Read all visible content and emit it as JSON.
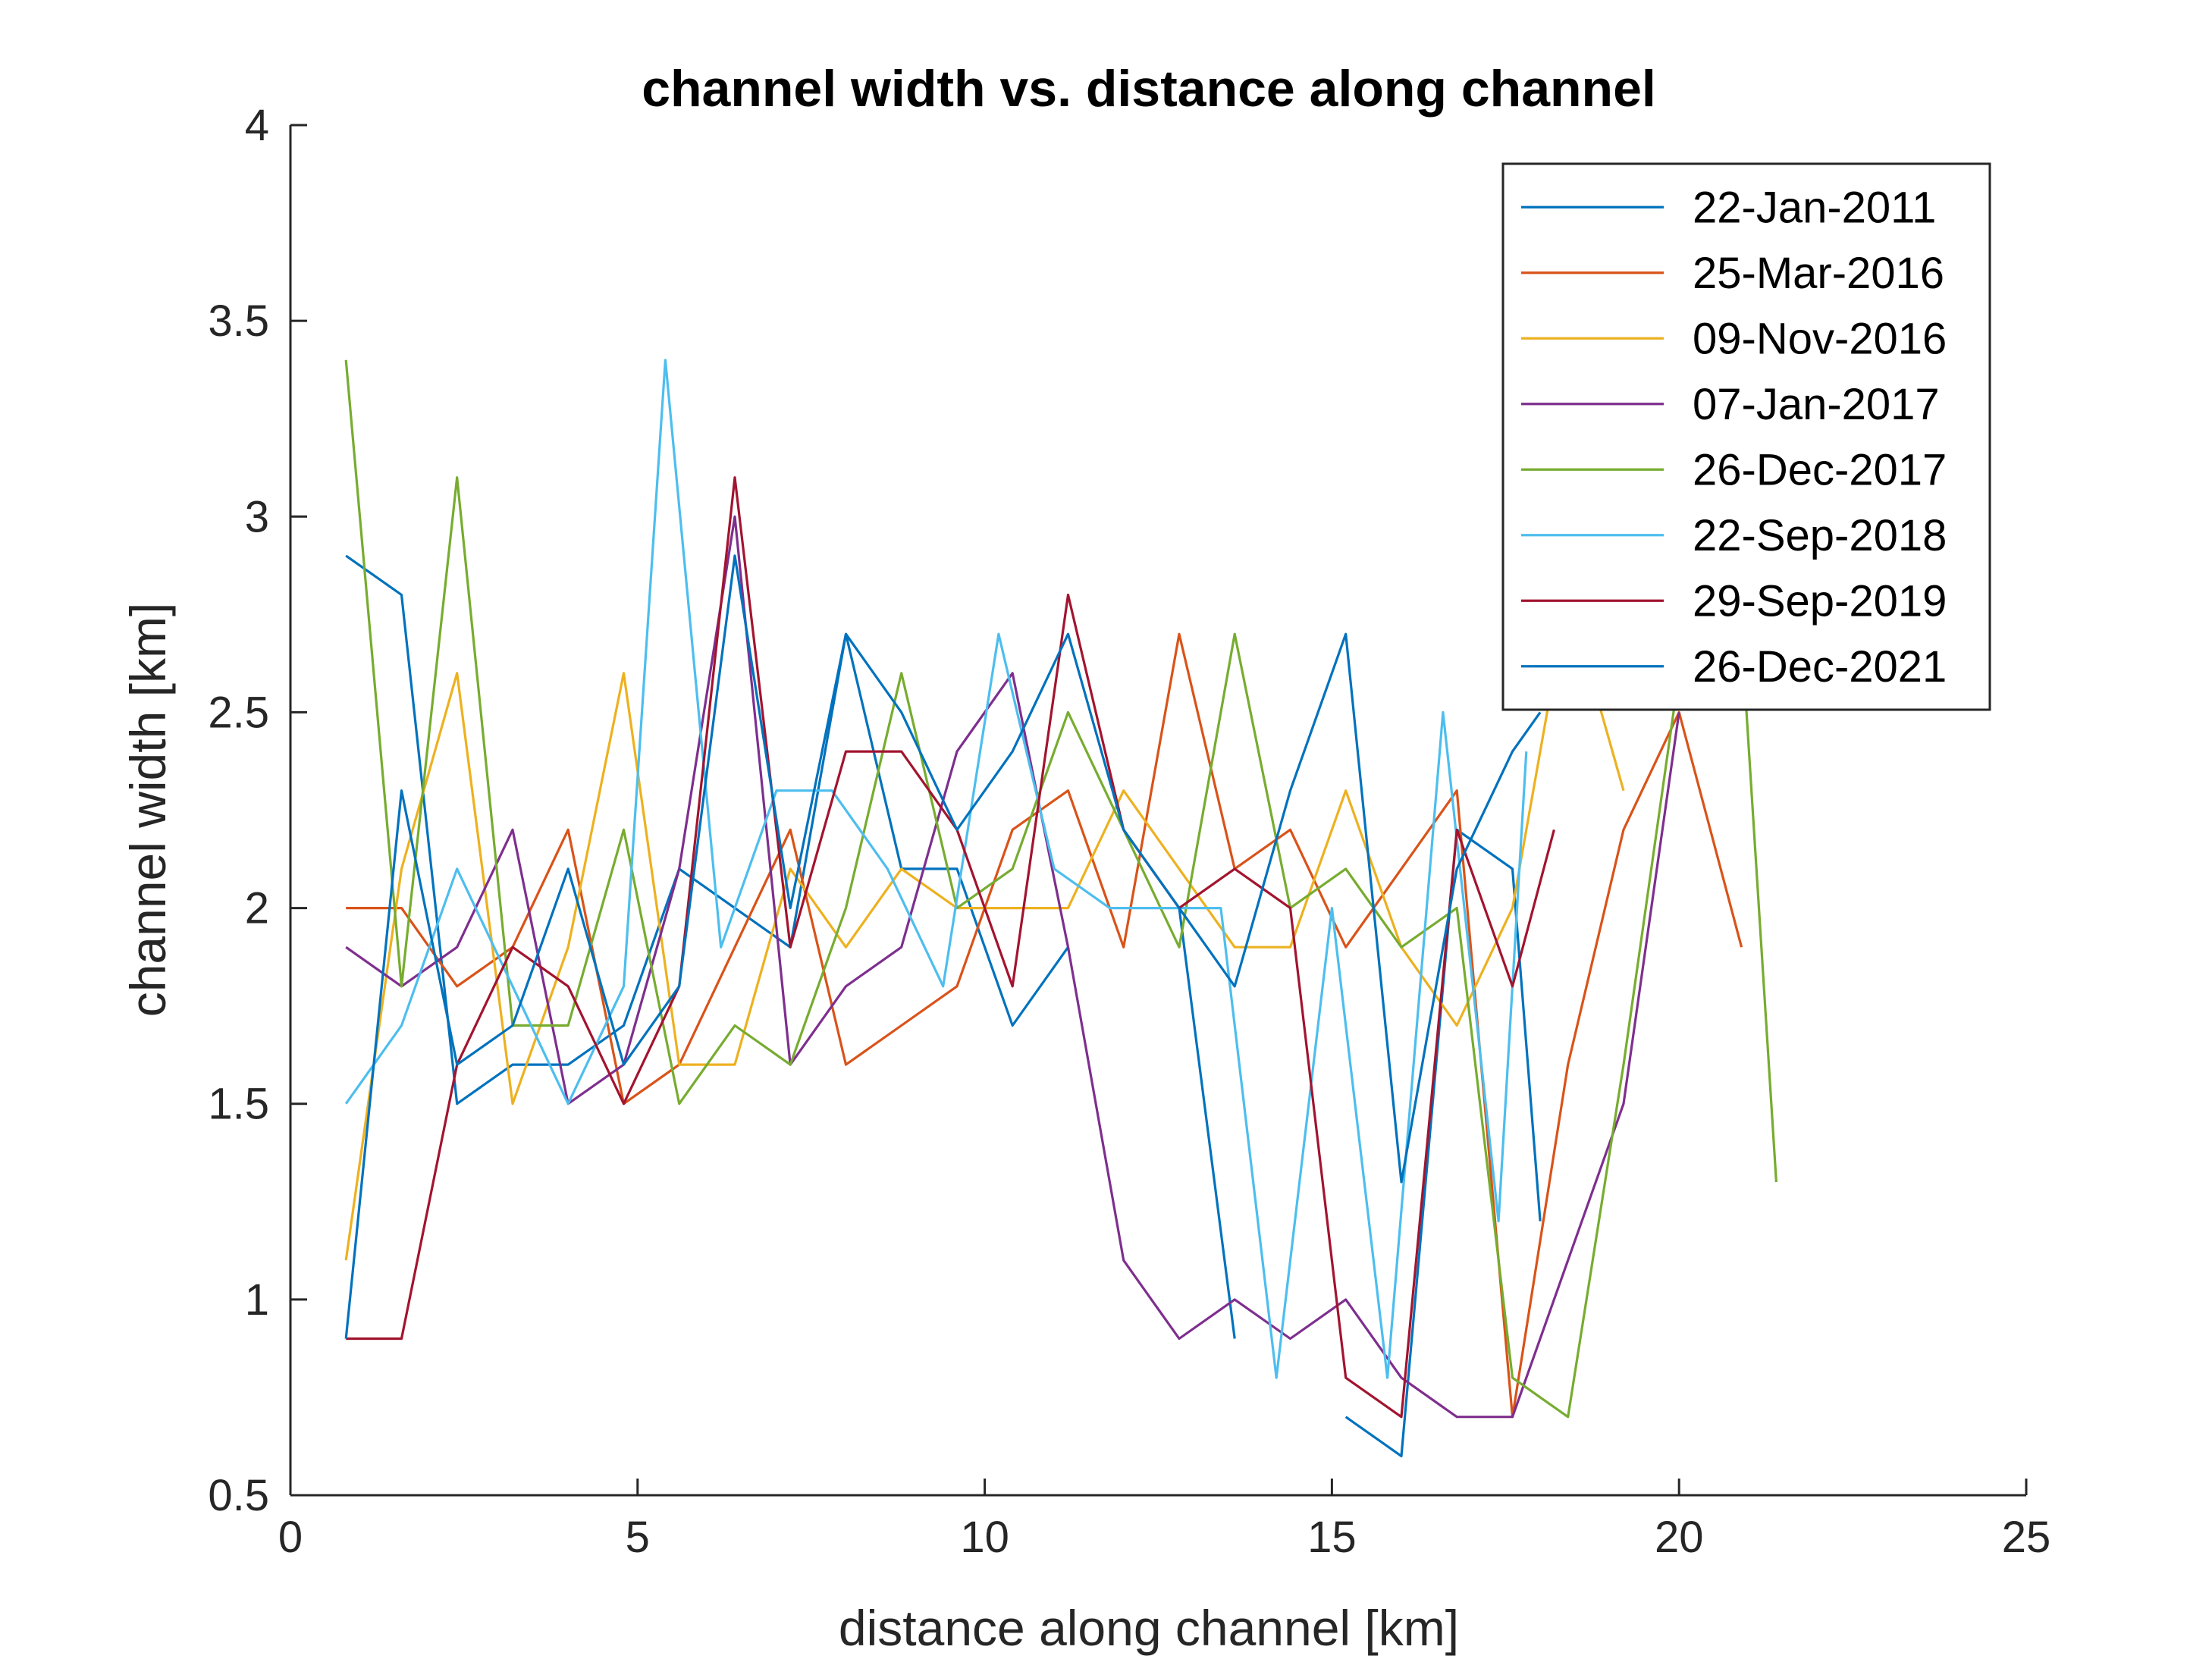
{
  "chart_data": {
    "type": "line",
    "title": "channel width vs. distance along channel",
    "xlabel": "distance along channel [km]",
    "ylabel": "channel width [km]",
    "xlim": [
      0,
      25
    ],
    "ylim": [
      0.5,
      4
    ],
    "xticks": [
      "0",
      "5",
      "10",
      "15",
      "20",
      "25"
    ],
    "yticks": [
      "0.5",
      "1",
      "1.5",
      "2",
      "2.5",
      "3",
      "3.5",
      "4"
    ],
    "grid": false,
    "legend_position": "top-right",
    "series": [
      {
        "name": "22-Jan-2011",
        "color": "#0072BD",
        "x": [
          0.8,
          1.6,
          2.4,
          3.2,
          4.0,
          4.8,
          5.6,
          6.4,
          7.2,
          8.0,
          8.8,
          9.6,
          10.4,
          11.2,
          12.0,
          12.8,
          13.6,
          14.4,
          15.2,
          16.0,
          16.8,
          17.6,
          18.0
        ],
        "y": [
          2.9,
          2.8,
          1.5,
          1.6,
          1.6,
          1.7,
          2.1,
          2.0,
          1.9,
          2.7,
          2.1,
          2.1,
          1.7,
          1.9,
          null,
          2.0,
          0.9,
          null,
          0.7,
          0.6,
          2.2,
          2.1,
          1.2
        ]
      },
      {
        "name": "25-Mar-2016",
        "color": "#D95319",
        "x": [
          0.8,
          1.6,
          2.4,
          3.2,
          4.0,
          4.8,
          5.6,
          6.4,
          7.2,
          8.0,
          8.8,
          9.6,
          10.4,
          11.2,
          12.0,
          12.8,
          13.6,
          14.4,
          15.2,
          16.0,
          16.8,
          17.6,
          18.4,
          19.2,
          20.0,
          20.9
        ],
        "y": [
          2.0,
          2.0,
          1.8,
          1.9,
          2.2,
          1.5,
          1.6,
          1.9,
          2.2,
          1.6,
          1.7,
          1.8,
          2.2,
          2.3,
          1.9,
          2.7,
          2.1,
          2.2,
          1.9,
          2.1,
          2.3,
          0.7,
          1.6,
          2.2,
          2.5,
          1.9
        ]
      },
      {
        "name": "09-Nov-2016",
        "color": "#EDB120",
        "x": [
          0.8,
          1.6,
          2.4,
          3.2,
          4.0,
          4.8,
          5.6,
          6.4,
          7.2,
          8.0,
          8.8,
          9.6,
          10.4,
          11.2,
          12.0,
          12.8,
          13.6,
          14.4,
          15.2,
          16.0,
          16.8,
          17.6,
          18.4,
          19.2
        ],
        "y": [
          1.1,
          2.1,
          2.6,
          1.5,
          1.9,
          2.6,
          1.6,
          1.6,
          2.1,
          1.9,
          2.1,
          2.0,
          2.0,
          2.0,
          2.3,
          2.1,
          1.9,
          1.9,
          2.3,
          1.9,
          1.7,
          2.0,
          2.8,
          2.3
        ]
      },
      {
        "name": "07-Jan-2017",
        "color": "#7E2F8E",
        "x": [
          0.8,
          1.6,
          2.4,
          3.2,
          4.0,
          4.8,
          5.6,
          6.4,
          7.2,
          8.0,
          8.8,
          9.6,
          10.4,
          11.2,
          12.0,
          12.8,
          13.6,
          14.4,
          15.2,
          16.0,
          16.8,
          17.6,
          18.4,
          19.2,
          20.0
        ],
        "y": [
          1.9,
          1.8,
          1.9,
          2.2,
          1.5,
          1.6,
          2.1,
          3.0,
          1.6,
          1.8,
          1.9,
          2.4,
          2.6,
          1.9,
          1.1,
          0.9,
          1.0,
          0.9,
          1.0,
          0.8,
          0.7,
          0.7,
          1.1,
          1.5,
          2.5
        ]
      },
      {
        "name": "26-Dec-2017",
        "color": "#77AC30",
        "x": [
          0.8,
          1.6,
          2.4,
          3.2,
          4.0,
          4.8,
          5.6,
          6.4,
          7.2,
          8.0,
          8.8,
          9.6,
          10.4,
          11.2,
          12.0,
          12.8,
          13.6,
          14.4,
          15.2,
          16.0,
          16.8,
          17.6,
          18.4,
          19.2,
          20.0,
          20.9,
          21.4
        ],
        "y": [
          3.4,
          1.8,
          3.1,
          1.7,
          1.7,
          2.2,
          1.5,
          1.7,
          1.6,
          2.0,
          2.6,
          2.0,
          2.1,
          2.5,
          2.2,
          1.9,
          2.7,
          2.0,
          2.1,
          1.9,
          2.0,
          0.8,
          0.7,
          1.6,
          2.6,
          2.7,
          1.3
        ]
      },
      {
        "name": "22-Sep-2018",
        "color": "#4DBEEE",
        "x": [
          0.8,
          1.6,
          2.4,
          3.2,
          4.0,
          4.8,
          5.4,
          6.2,
          7.0,
          7.8,
          8.6,
          9.4,
          10.2,
          11.0,
          11.8,
          12.6,
          13.4,
          14.2,
          15.0,
          15.8,
          16.6,
          17.4,
          17.8
        ],
        "y": [
          1.5,
          1.7,
          2.1,
          1.8,
          1.5,
          1.8,
          3.4,
          1.9,
          2.3,
          2.3,
          2.1,
          1.8,
          2.7,
          2.1,
          2.0,
          2.0,
          2.0,
          0.8,
          2.0,
          0.8,
          2.5,
          1.2,
          2.4
        ]
      },
      {
        "name": "29-Sep-2019",
        "color": "#A2142F",
        "x": [
          0.8,
          1.6,
          2.4,
          3.2,
          4.0,
          4.8,
          5.6,
          6.4,
          7.2,
          8.0,
          8.8,
          9.6,
          10.4,
          11.2,
          12.0,
          12.8,
          13.6,
          14.4,
          15.2,
          16.0,
          16.8,
          17.6,
          18.2
        ],
        "y": [
          0.9,
          0.9,
          1.6,
          1.9,
          1.8,
          1.5,
          1.8,
          3.1,
          1.9,
          2.4,
          2.4,
          2.2,
          1.8,
          2.8,
          2.2,
          2.0,
          2.1,
          2.0,
          0.8,
          0.7,
          2.2,
          1.8,
          2.2
        ]
      },
      {
        "name": "26-Dec-2021",
        "color": "#0072BD",
        "x": [
          0.8,
          1.6,
          2.4,
          3.2,
          4.0,
          4.8,
          5.6,
          6.4,
          7.2,
          8.0,
          8.8,
          9.6,
          10.4,
          11.2,
          12.0,
          12.8,
          13.6,
          14.4,
          15.2,
          16.0,
          16.8,
          17.6,
          18.0
        ],
        "y": [
          0.9,
          2.3,
          1.6,
          1.7,
          2.1,
          1.6,
          1.8,
          2.9,
          2.0,
          2.7,
          2.5,
          2.2,
          2.4,
          2.7,
          2.2,
          2.0,
          1.8,
          2.3,
          2.7,
          1.3,
          2.1,
          2.4,
          2.5
        ]
      }
    ]
  }
}
